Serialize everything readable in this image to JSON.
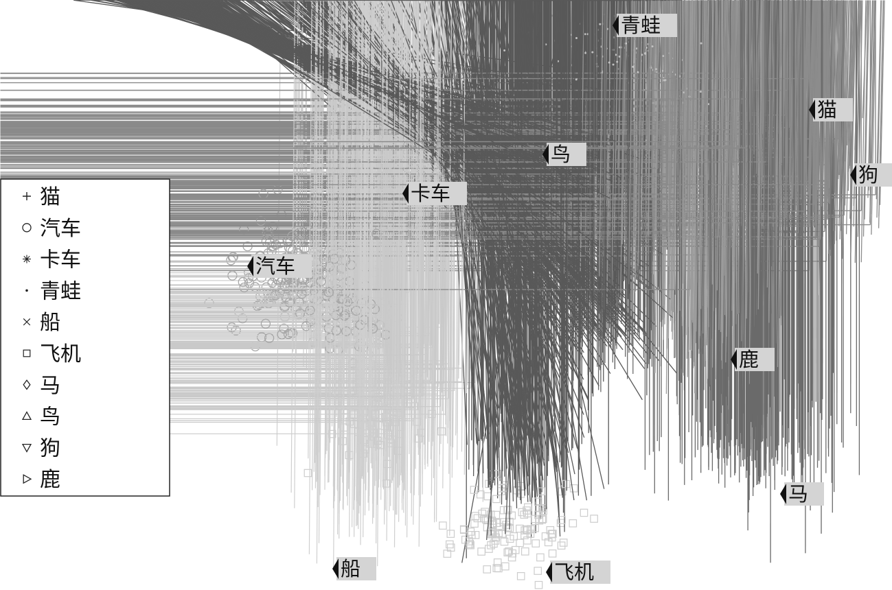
{
  "chart_data": {
    "type": "scatter",
    "title": "",
    "xlabel": "",
    "ylabel": "",
    "axes_visible": false,
    "grid": false,
    "legend_placement": "left",
    "series": [
      {
        "name": "猫",
        "marker": "plus",
        "color": "#8a8a8a"
      },
      {
        "name": "汽车",
        "marker": "circle",
        "color": "#a6a6a6"
      },
      {
        "name": "卡车",
        "marker": "asterisk",
        "color": "#c9c9c9"
      },
      {
        "name": "青蛙",
        "marker": "dot",
        "color": "#c2c2c2"
      },
      {
        "name": "船",
        "marker": "cross",
        "color": "#cfcfcf"
      },
      {
        "name": "飞机",
        "marker": "square",
        "color": "#cccccc"
      },
      {
        "name": "马",
        "marker": "diamond",
        "color": "#6a6a6a"
      },
      {
        "name": "鸟",
        "marker": "triangle-up",
        "color": "#595959"
      },
      {
        "name": "狗",
        "marker": "triangle-down",
        "color": "#8c8c8c"
      },
      {
        "name": "鹿",
        "marker": "triangle-right",
        "color": "#9c9c9c"
      }
    ],
    "cluster_labels": [
      {
        "text": "青蛙",
        "series": "青蛙"
      },
      {
        "text": "猫",
        "series": "猫"
      },
      {
        "text": "鸟",
        "series": "鸟"
      },
      {
        "text": "狗",
        "series": "狗"
      },
      {
        "text": "卡车",
        "series": "卡车"
      },
      {
        "text": "汽车",
        "series": "汽车"
      },
      {
        "text": "鹿",
        "series": "鹿"
      },
      {
        "text": "马",
        "series": "马"
      },
      {
        "text": "船",
        "series": "船"
      },
      {
        "text": "飞机",
        "series": "飞机"
      }
    ]
  }
}
